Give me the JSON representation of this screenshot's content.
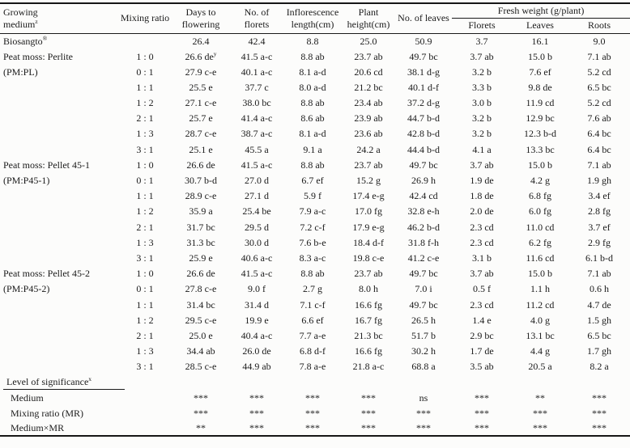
{
  "table": {
    "header": {
      "growing_medium_line1": "Growing",
      "growing_medium_line2": "medium",
      "growing_medium_sup": "z",
      "mixing_ratio": "Mixing ratio",
      "days_to_flowering": "Days to flowering",
      "no_of_florets": "No. of florets",
      "inflorescence_length": "Inflorescence length(cm)",
      "plant_height": "Plant height(cm)",
      "no_of_leaves": "No. of leaves",
      "fresh_weight_group": "Fresh weight (g/plant)",
      "fresh_weight_subcols": [
        "Florets",
        "Leaves",
        "Roots"
      ]
    },
    "sections": [
      {
        "medium_lines": [
          {
            "t": "Biosangto",
            "sup": "®"
          }
        ],
        "rows": [
          {
            "ratio": "",
            "values": [
              "26.4",
              "42.4",
              "8.8",
              "25.0",
              "50.9",
              "3.7",
              "16.1",
              "9.0"
            ]
          }
        ]
      },
      {
        "medium_lines": [
          "Peat moss: Perlite",
          "(PM:PL)"
        ],
        "rows": [
          {
            "ratio": "1 : 0",
            "values": [
              {
                "t": "26.6 de",
                "sup": "y"
              },
              "41.5 a-c",
              "8.8 ab",
              "23.7 ab",
              "49.7 bc",
              "3.7 ab",
              "15.0 b",
              "7.1 ab"
            ]
          },
          {
            "ratio": "0 : 1",
            "values": [
              "27.9 c-e",
              "40.1 a-c",
              "8.1 a-d",
              "20.6 cd",
              "38.1 d-g",
              "3.2 b",
              "7.6 ef",
              "5.2 cd"
            ]
          },
          {
            "ratio": "1 : 1",
            "values": [
              "25.5 e",
              "37.7 c",
              "8.0 a-d",
              "21.2 bc",
              "40.1 d-f",
              "3.3 b",
              "9.8 de",
              "6.5 bc"
            ]
          },
          {
            "ratio": "1 : 2",
            "values": [
              "27.1 c-e",
              "38.0 bc",
              "8.8 ab",
              "23.4 ab",
              "37.2 d-g",
              "3.0 b",
              "11.9 cd",
              "5.2 cd"
            ]
          },
          {
            "ratio": "2 : 1",
            "values": [
              "25.7 e",
              "41.4 a-c",
              "8.6 ab",
              "23.9 ab",
              "44.7 b-d",
              "3.2 b",
              "12.9 bc",
              "7.6 ab"
            ]
          },
          {
            "ratio": "1 : 3",
            "values": [
              "28.7 c-e",
              "38.7 a-c",
              "8.1 a-d",
              "23.6 ab",
              "42.8 b-d",
              "3.2 b",
              "12.3 b-d",
              "6.4 bc"
            ]
          },
          {
            "ratio": "3 : 1",
            "values": [
              "25.1 e",
              "45.5 a",
              "9.1 a",
              "24.2 a",
              "44.4 b-d",
              "4.1 a",
              "13.3 bc",
              "6.4 bc"
            ]
          }
        ]
      },
      {
        "medium_lines": [
          "Peat moss: Pellet 45-1",
          "(PM:P45-1)"
        ],
        "rows": [
          {
            "ratio": "1 : 0",
            "values": [
              "26.6 de",
              "41.5 a-c",
              "8.8 ab",
              "23.7 ab",
              "49.7 bc",
              "3.7 ab",
              "15.0 b",
              "7.1 ab"
            ]
          },
          {
            "ratio": "0 : 1",
            "values": [
              "30.7 b-d",
              "27.0 d",
              "6.7 ef",
              "15.2 g",
              "26.9 h",
              "1.9 de",
              "4.2 g",
              "1.9 gh"
            ]
          },
          {
            "ratio": "1 : 1",
            "values": [
              "28.9 c-e",
              "27.1 d",
              "5.9 f",
              "17.4 e-g",
              "42.4 cd",
              "1.8 de",
              "6.8 fg",
              "3.4 ef"
            ]
          },
          {
            "ratio": "1 : 2",
            "values": [
              "35.9 a",
              "25.4 be",
              "7.9 a-c",
              "17.0 fg",
              "32.8 e-h",
              "2.0 de",
              "6.0 fg",
              "2.8 fg"
            ]
          },
          {
            "ratio": "2 : 1",
            "values": [
              "31.7 bc",
              "29.5 d",
              "7.2 c-f",
              "17.9 e-g",
              "46.2 b-d",
              "2.3 cd",
              "11.0 cd",
              "3.7 ef"
            ]
          },
          {
            "ratio": "1 : 3",
            "values": [
              "31.3 bc",
              "30.0 d",
              "7.6 b-e",
              "18.4 d-f",
              "31.8 f-h",
              "2.3 cd",
              "6.2 fg",
              "2.9 fg"
            ]
          },
          {
            "ratio": "3 : 1",
            "values": [
              "25.9 e",
              "40.6 a-c",
              "8.3 a-c",
              "19.8 c-e",
              "41.2 c-e",
              "3.1 b",
              "11.6 cd",
              "6.1 b-d"
            ]
          }
        ]
      },
      {
        "medium_lines": [
          "Peat moss: Pellet 45-2",
          "(PM:P45-2)"
        ],
        "rows": [
          {
            "ratio": "1 : 0",
            "values": [
              "26.6 de",
              "41.5 a-c",
              "8.8 ab",
              "23.7 ab",
              "49.7 bc",
              "3.7 ab",
              "15.0 b",
              "7.1 ab"
            ]
          },
          {
            "ratio": "0 : 1",
            "values": [
              "27.8 c-e",
              "9.0 f",
              "2.7 g",
              "8.0 h",
              "7.0 i",
              "0.5 f",
              "1.1 h",
              "0.6 h"
            ]
          },
          {
            "ratio": "1 : 1",
            "values": [
              "31.4 bc",
              "31.4 d",
              "7.1 c-f",
              "16.6 fg",
              "49.7 bc",
              "2.3 cd",
              "11.2 cd",
              "4.7 de"
            ]
          },
          {
            "ratio": "1 : 2",
            "values": [
              "29.5 c-e",
              "19.9 e",
              "6.6 ef",
              "16.7 fg",
              "26.5 h",
              "1.4 e",
              "4.0 g",
              "1.5 gh"
            ]
          },
          {
            "ratio": "2 : 1",
            "values": [
              "25.0 e",
              "40.4 a-c",
              "7.7 a-e",
              "21.3 bc",
              "51.7 b",
              "2.9 bc",
              "13.1 bc",
              "6.5 bc"
            ]
          },
          {
            "ratio": "1 : 3",
            "values": [
              "34.4 ab",
              "26.0 de",
              "6.8 d-f",
              "16.6 fg",
              "30.2 h",
              "1.7 de",
              "4.4 g",
              "1.7 gh"
            ]
          },
          {
            "ratio": "3 : 1",
            "values": [
              "28.5 c-e",
              "44.9 ab",
              "7.8 a-e",
              "21.8 a-c",
              "68.8 a",
              "3.5 ab",
              "20.5 a",
              "8.2 a"
            ]
          }
        ]
      }
    ],
    "significance": {
      "title_text": "Level of significance",
      "title_sup": "x",
      "rows": [
        {
          "label": "Medium",
          "values": [
            "***",
            "***",
            "***",
            "***",
            "ns",
            "***",
            "**",
            "***"
          ]
        },
        {
          "label": "Mixing ratio (MR)",
          "values": [
            "***",
            "***",
            "***",
            "***",
            "***",
            "***",
            "***",
            "***"
          ]
        },
        {
          "label": "Medium×MR",
          "values": [
            "**",
            "***",
            "***",
            "***",
            "***",
            "***",
            "***",
            "***"
          ]
        }
      ]
    }
  }
}
